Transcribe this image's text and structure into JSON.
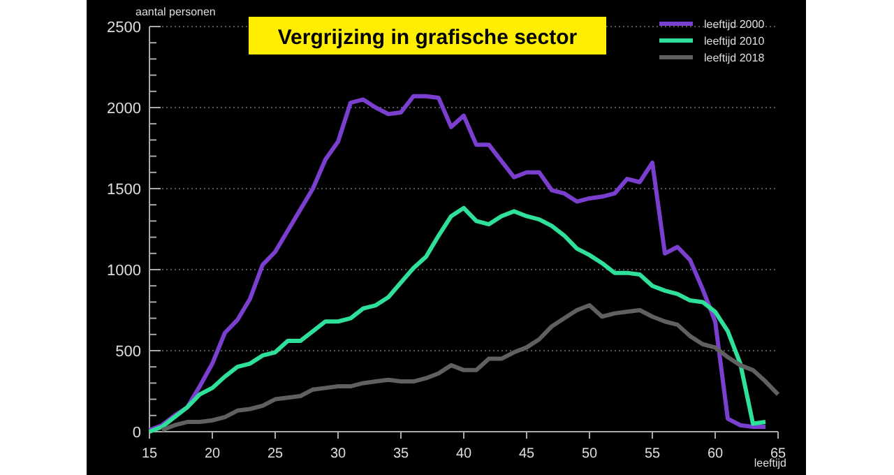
{
  "chart_data": {
    "type": "line",
    "title": "Vergrijzing in grafische sector",
    "ylabel": "aantal personen",
    "xlabel": "leeftijd",
    "x": [
      15,
      16,
      17,
      18,
      19,
      20,
      21,
      22,
      23,
      24,
      25,
      26,
      27,
      28,
      29,
      30,
      31,
      32,
      33,
      34,
      35,
      36,
      37,
      38,
      39,
      40,
      41,
      42,
      43,
      44,
      45,
      46,
      47,
      48,
      49,
      50,
      51,
      52,
      53,
      54,
      55,
      56,
      57,
      58,
      59,
      60,
      61,
      62,
      63,
      64,
      65
    ],
    "series": [
      {
        "name": "leeftijd 2000",
        "color": "#7b3fd0",
        "values": [
          10,
          40,
          100,
          150,
          280,
          420,
          610,
          690,
          820,
          1030,
          1110,
          1240,
          1370,
          1500,
          1680,
          1790,
          2030,
          2050,
          2000,
          1960,
          1970,
          2070,
          2070,
          2060,
          1880,
          1950,
          1770,
          1770,
          1670,
          1570,
          1600,
          1600,
          1490,
          1470,
          1420,
          1440,
          1450,
          1470,
          1560,
          1540,
          1660,
          1100,
          1140,
          1060,
          880,
          680,
          80,
          40,
          30,
          30,
          null
        ]
      },
      {
        "name": "leeftijd 2010",
        "color": "#2ee09a",
        "values": [
          0,
          30,
          90,
          150,
          230,
          270,
          340,
          400,
          420,
          470,
          490,
          560,
          560,
          620,
          680,
          680,
          700,
          760,
          780,
          830,
          920,
          1010,
          1080,
          1210,
          1330,
          1380,
          1300,
          1280,
          1330,
          1360,
          1330,
          1310,
          1270,
          1210,
          1130,
          1090,
          1040,
          980,
          980,
          970,
          900,
          870,
          850,
          810,
          800,
          740,
          620,
          420,
          50,
          60,
          null
        ]
      },
      {
        "name": "leeftijd 2018",
        "color": "#606060",
        "values": [
          null,
          10,
          40,
          60,
          60,
          70,
          90,
          130,
          140,
          160,
          200,
          210,
          220,
          260,
          270,
          280,
          280,
          300,
          310,
          320,
          310,
          310,
          330,
          360,
          410,
          380,
          380,
          450,
          450,
          490,
          520,
          570,
          650,
          700,
          750,
          780,
          710,
          730,
          740,
          750,
          710,
          680,
          660,
          590,
          540,
          520,
          460,
          410,
          380,
          310,
          230
        ]
      }
    ],
    "xlim": [
      15,
      65
    ],
    "xticks": [
      15,
      20,
      25,
      30,
      35,
      40,
      45,
      50,
      55,
      60,
      65
    ],
    "ylim": [
      0,
      2500
    ],
    "yticks": [
      0,
      {
        "value": 100,
        "label": null
      },
      {
        "value": 200,
        "label": null
      },
      {
        "value": 300,
        "label": null
      },
      {
        "value": 400,
        "label": null
      },
      500,
      {
        "value": 600,
        "label": null
      },
      {
        "value": 700,
        "label": null
      },
      {
        "value": 800,
        "label": null
      },
      {
        "value": 900,
        "label": null
      },
      1000,
      {
        "value": 1100,
        "label": null
      },
      {
        "value": 1200,
        "label": null
      },
      {
        "value": 1300,
        "label": null
      },
      {
        "value": 1400,
        "label": null
      },
      1500,
      {
        "value": 1600,
        "label": null
      },
      {
        "value": 1700,
        "label": null
      },
      {
        "value": 1800,
        "label": null
      },
      {
        "value": 1900,
        "label": null
      },
      2000,
      {
        "value": 2100,
        "label": null
      },
      {
        "value": 2200,
        "label": null
      },
      {
        "value": 2300,
        "label": null
      },
      {
        "value": 2400,
        "label": null
      },
      2500
    ],
    "grid": "y",
    "legend": "top right",
    "marker": "none",
    "line_style": "solid"
  }
}
